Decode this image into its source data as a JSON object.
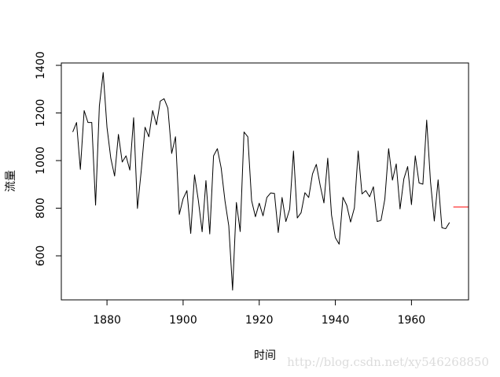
{
  "chart_data": {
    "type": "line",
    "xlabel": "时间",
    "ylabel": "流量",
    "xlim": [
      1868,
      1975
    ],
    "ylim": [
      415,
      1410
    ],
    "x_ticks": [
      1880,
      1900,
      1920,
      1940,
      1960
    ],
    "y_ticks": [
      600,
      800,
      1000,
      1200,
      1400
    ],
    "grid": false,
    "series": [
      {
        "color": "#000000",
        "x": [
          1871,
          1872,
          1873,
          1874,
          1875,
          1876,
          1877,
          1878,
          1879,
          1880,
          1881,
          1882,
          1883,
          1884,
          1885,
          1886,
          1887,
          1888,
          1889,
          1890,
          1891,
          1892,
          1893,
          1894,
          1895,
          1896,
          1897,
          1898,
          1899,
          1900,
          1901,
          1902,
          1903,
          1904,
          1905,
          1906,
          1907,
          1908,
          1909,
          1910,
          1911,
          1912,
          1913,
          1914,
          1915,
          1916,
          1917,
          1918,
          1919,
          1920,
          1921,
          1922,
          1923,
          1924,
          1925,
          1926,
          1927,
          1928,
          1929,
          1930,
          1931,
          1932,
          1933,
          1934,
          1935,
          1936,
          1937,
          1938,
          1939,
          1940,
          1941,
          1942,
          1943,
          1944,
          1945,
          1946,
          1947,
          1948,
          1949,
          1950,
          1951,
          1952,
          1953,
          1954,
          1955,
          1956,
          1957,
          1958,
          1959,
          1960,
          1961,
          1962,
          1963,
          1964,
          1965,
          1966,
          1967,
          1968,
          1969,
          1970
        ],
        "values": [
          1120,
          1160,
          963,
          1210,
          1160,
          1160,
          813,
          1230,
          1370,
          1140,
          1010,
          935,
          1110,
          994,
          1020,
          960,
          1180,
          799,
          958,
          1140,
          1100,
          1210,
          1150,
          1250,
          1260,
          1220,
          1030,
          1100,
          774,
          840,
          874,
          694,
          940,
          833,
          701,
          916,
          692,
          1020,
          1050,
          969,
          831,
          726,
          456,
          824,
          702,
          1120,
          1100,
          832,
          764,
          821,
          768,
          845,
          864,
          862,
          698,
          845,
          744,
          796,
          1040,
          759,
          781,
          865,
          845,
          944,
          984,
          897,
          822,
          1010,
          771,
          676,
          649,
          846,
          812,
          742,
          801,
          1040,
          860,
          874,
          848,
          890,
          744,
          749,
          838,
          1050,
          918,
          986,
          797,
          923,
          975,
          815,
          1020,
          906,
          901,
          1170,
          912,
          746,
          919,
          718,
          714,
          740
        ]
      },
      {
        "color": "#ff0000",
        "x": [
          1971,
          1980
        ],
        "values": [
          805,
          805
        ]
      }
    ]
  },
  "watermark": "http://blog.csdn.net/xy546268850"
}
